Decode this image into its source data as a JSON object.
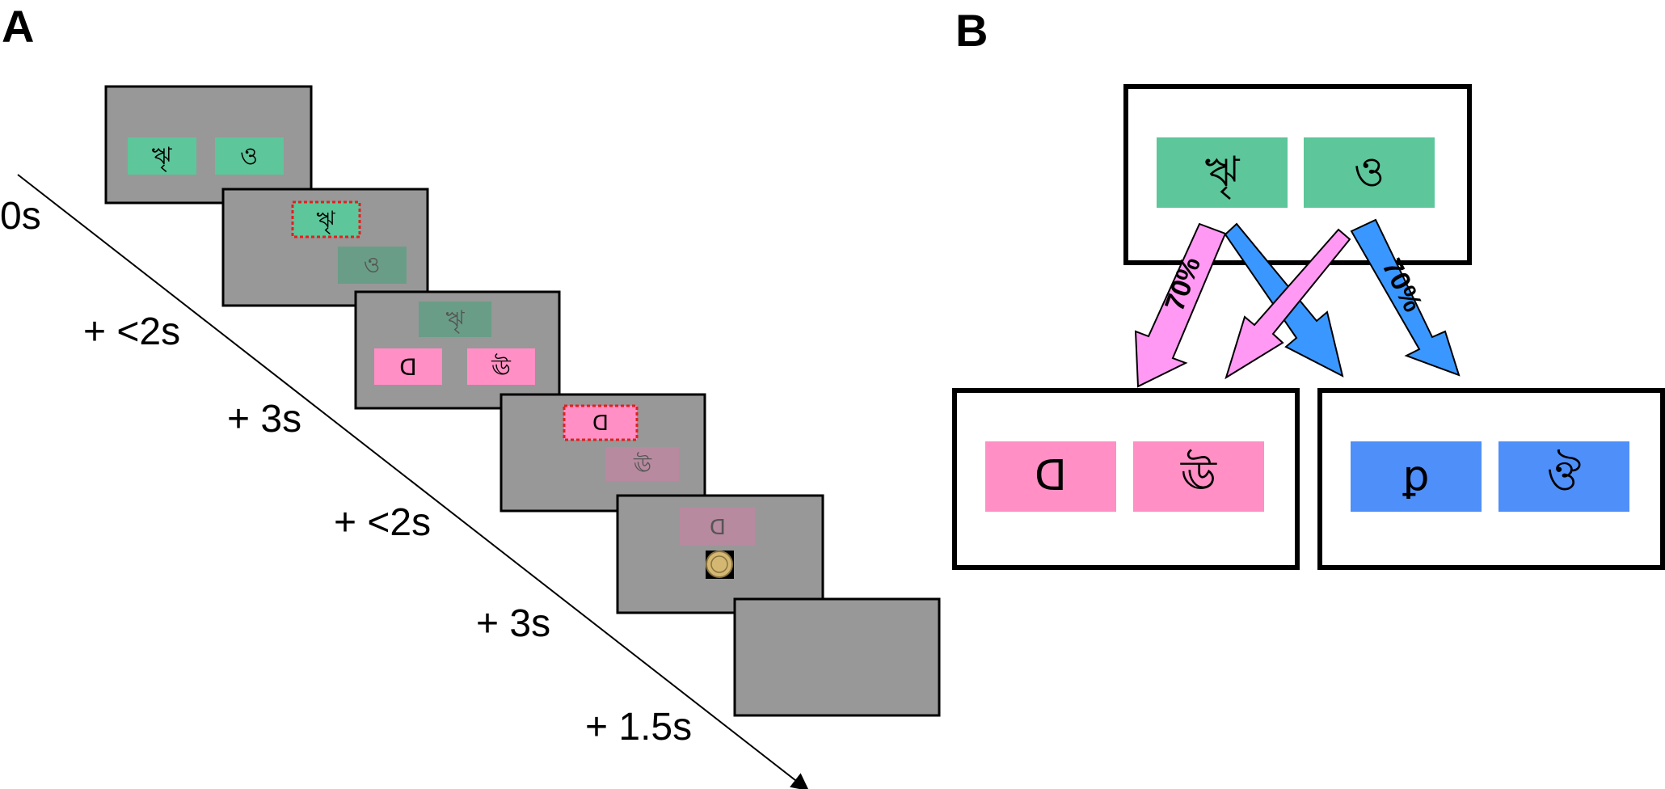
{
  "panel_a": {
    "letter": "A",
    "time_labels": [
      "0s",
      "+ <2s",
      "+ 3s",
      "+ <2s",
      "+ 3s",
      "+ 1.5s"
    ],
    "screen_color": "#989898",
    "stage1_color": "#5dc69a",
    "stage2_color": "#ff8fc4",
    "selection_border_color": "#e02020"
  },
  "panel_b": {
    "letter": "B",
    "stage1_symbols": [
      "ৠ",
      "ও"
    ],
    "stage2_pink_symbols": [
      "ꓷ",
      "ঊ"
    ],
    "stage2_blue_symbols": [
      "ꝑ",
      "ঔ"
    ],
    "transition_probability_left": "70%",
    "transition_probability_right": "70%",
    "common_arrow_color": "#ff99f3",
    "rare_arrow_color": "#3a97ff",
    "pink_color": "#ff8fc4",
    "blue_color": "#4f8ff9",
    "green_color": "#5dc69a"
  }
}
